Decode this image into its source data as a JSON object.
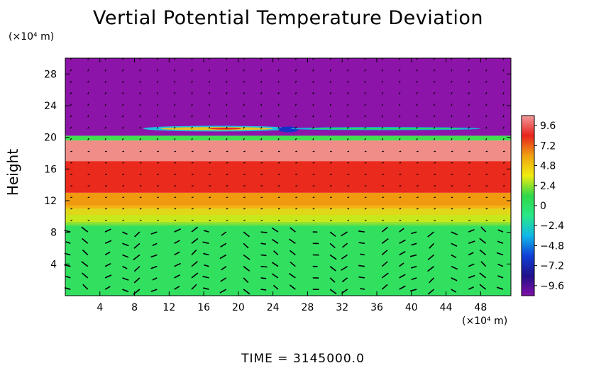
{
  "chart_data": {
    "type": "heatmap",
    "title": "Vertial Potential Temperature Deviation",
    "ylabel": "Height",
    "y_unit_label": "(×10⁴ m)",
    "x_unit_label": "(×10⁴ m)",
    "footer": "TIME  =  3145000.0",
    "xlim": [
      0,
      51.5
    ],
    "ylim": [
      0,
      30
    ],
    "x_ticks": [
      4,
      8,
      12,
      16,
      20,
      24,
      28,
      32,
      36,
      40,
      44,
      48
    ],
    "y_ticks": [
      4,
      8,
      12,
      16,
      20,
      24,
      28
    ],
    "colorbar": {
      "range": [
        -10.8,
        10.8
      ],
      "labels": [
        "9.6",
        "7.2",
        "4.8",
        "2.4",
        "0",
        "−2.4",
        "−4.8",
        "−7.2",
        "−9.6"
      ],
      "colors": [
        "#f09a9a",
        "#e8241e",
        "#f0a010",
        "#f0ec10",
        "#30d848",
        "#28e888",
        "#10b8e8",
        "#1040d8",
        "#20108a",
        "#8010a8"
      ]
    },
    "bands": [
      {
        "y_range": [
          0,
          9
        ],
        "value": 0.5,
        "description_color": "#32e060"
      },
      {
        "y_range": [
          9,
          11
        ],
        "value": 3.5,
        "description_color": "#c8e81c"
      },
      {
        "y_range": [
          11,
          13
        ],
        "value": 5.5,
        "description_color": "#f09a10"
      },
      {
        "y_range": [
          13,
          17
        ],
        "value": 7.0,
        "description_color": "#ea2a1c"
      },
      {
        "y_range": [
          17,
          19.6
        ],
        "value": 9.5,
        "description_color": "#f08d88"
      },
      {
        "y_range": [
          19.6,
          20.2
        ],
        "value": 2.0,
        "description_color": "#40e050"
      },
      {
        "y_range": [
          20.2,
          30
        ],
        "value": -10.5,
        "description_color": "#8c14a8"
      }
    ]
  }
}
